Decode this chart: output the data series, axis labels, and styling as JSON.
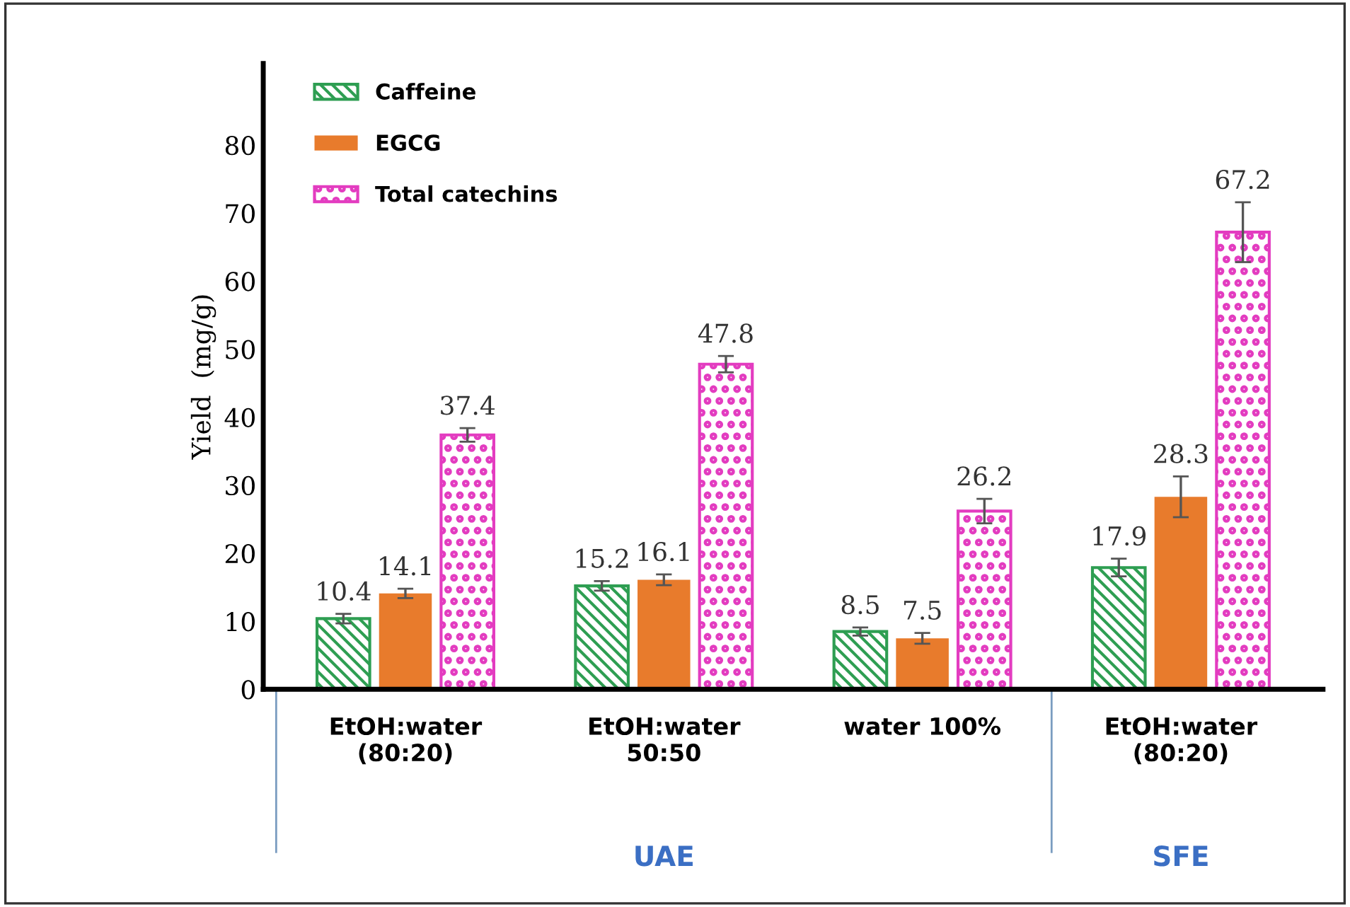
{
  "chart_data": {
    "type": "bar",
    "ylabel": "Yield  (mg/g)",
    "categories": [
      "EtOH:water\n(80:20)",
      "EtOH:water\n50:50",
      "water 100%",
      "EtOH:water\n(80:20)"
    ],
    "series": [
      {
        "name": "Caffeine",
        "color": "#2e9e52",
        "values": [
          10.4,
          15.2,
          8.5,
          17.9
        ],
        "errors": [
          0.7,
          0.7,
          0.6,
          1.3
        ]
      },
      {
        "name": "EGCG",
        "color": "#e87b2c",
        "values": [
          14.1,
          16.1,
          7.5,
          28.3
        ],
        "errors": [
          0.7,
          0.8,
          0.8,
          3
        ]
      },
      {
        "name": "Total catechins",
        "color": "#e33cc0",
        "values": [
          37.4,
          47.8,
          26.2,
          67.2
        ],
        "errors": [
          1,
          1.2,
          1.8,
          4.4
        ]
      }
    ],
    "ylim": [
      0,
      92
    ],
    "yticks": [
      0,
      10,
      20,
      30,
      40,
      50,
      60,
      70,
      80
    ],
    "data_labels": true,
    "grid": false,
    "legend": "top left",
    "annotations": [
      "UAE",
      "SFE"
    ]
  }
}
